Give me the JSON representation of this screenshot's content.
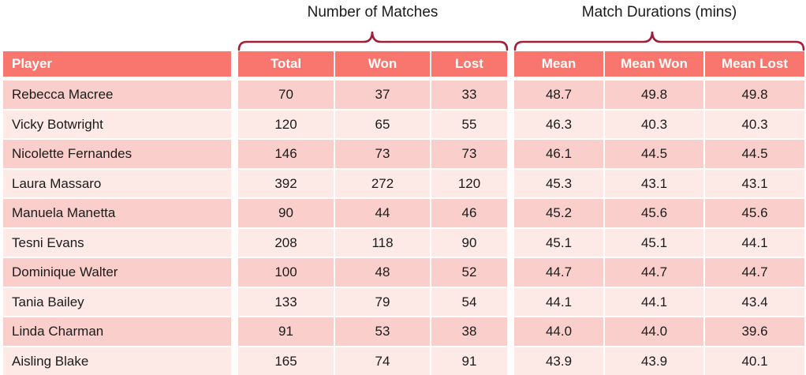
{
  "colors": {
    "header_bg": "#F8766D",
    "row_odd": "#FACFCB",
    "row_even": "#FDE9E6",
    "brace": "#A21E35",
    "header_text": "#FFFFFF",
    "body_text": "#1B1B1B"
  },
  "chart_data": {
    "type": "table",
    "group_headers": [
      {
        "label": "Number of Matches",
        "columns": [
          "Total",
          "Won",
          "Lost"
        ]
      },
      {
        "label": "Match Durations (mins)",
        "columns": [
          "Mean",
          "Mean Won",
          "Mean Lost"
        ]
      }
    ],
    "columns": [
      "Player",
      "Total",
      "Won",
      "Lost",
      "Mean",
      "Mean Won",
      "Mean Lost"
    ],
    "rows": [
      [
        "Rebecca Macree",
        "70",
        "37",
        "33",
        "48.7",
        "49.8",
        "49.8"
      ],
      [
        "Vicky Botwright",
        "120",
        "65",
        "55",
        "46.3",
        "40.3",
        "40.3"
      ],
      [
        "Nicolette Fernandes",
        "146",
        "73",
        "73",
        "46.1",
        "44.5",
        "44.5"
      ],
      [
        "Laura Massaro",
        "392",
        "272",
        "120",
        "45.3",
        "43.1",
        "43.1"
      ],
      [
        "Manuela Manetta",
        "90",
        "44",
        "46",
        "45.2",
        "45.6",
        "45.6"
      ],
      [
        "Tesni Evans",
        "208",
        "118",
        "90",
        "45.1",
        "45.1",
        "44.1"
      ],
      [
        "Dominique Walter",
        "100",
        "48",
        "52",
        "44.7",
        "44.7",
        "44.7"
      ],
      [
        "Tania Bailey",
        "133",
        "79",
        "54",
        "44.1",
        "44.1",
        "43.4"
      ],
      [
        "Linda Charman",
        "91",
        "53",
        "38",
        "44.0",
        "44.0",
        "39.6"
      ],
      [
        "Aisling Blake",
        "165",
        "74",
        "91",
        "43.9",
        "43.9",
        "40.1"
      ]
    ]
  }
}
